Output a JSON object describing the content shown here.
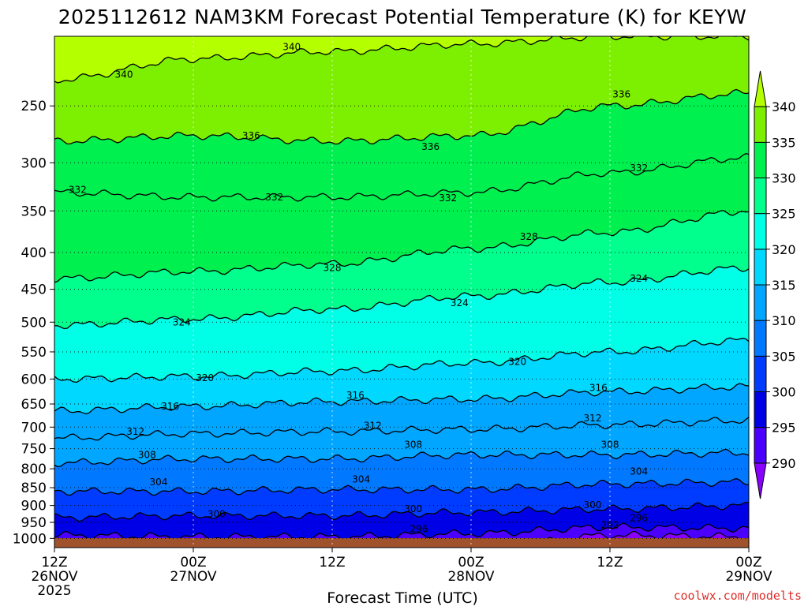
{
  "title": "2025112612 NAM3KM Forecast Potential Temperature (K) for KEYW",
  "credit": "coolwx.com/modelts",
  "colors": {
    "ground": "#a0522d",
    "bands": [
      {
        "from": 285,
        "to": 290,
        "color": "#8a00ff"
      },
      {
        "from": 290,
        "to": 295,
        "color": "#4b00ff"
      },
      {
        "from": 295,
        "to": 300,
        "color": "#0000e6"
      },
      {
        "from": 300,
        "to": 305,
        "color": "#003cff"
      },
      {
        "from": 305,
        "to": 310,
        "color": "#0078ff"
      },
      {
        "from": 310,
        "to": 315,
        "color": "#00a6ff"
      },
      {
        "from": 315,
        "to": 320,
        "color": "#00d8ff"
      },
      {
        "from": 320,
        "to": 325,
        "color": "#00ffe6"
      },
      {
        "from": 325,
        "to": 330,
        "color": "#00ff8c"
      },
      {
        "from": 330,
        "to": 335,
        "color": "#00f050"
      },
      {
        "from": 335,
        "to": 340,
        "color": "#7cf000"
      },
      {
        "from": 340,
        "to": 345,
        "color": "#b4ff00"
      }
    ]
  },
  "chart_data": {
    "type": "heatmap",
    "title": "2025112612 NAM3KM Forecast Potential Temperature (K) for KEYW",
    "xlabel": "Forecast Time (UTC)",
    "ylabel": "",
    "x_ticks": [
      {
        "hour": 0,
        "line1": "12Z",
        "line2": "26NOV",
        "line3": "2025"
      },
      {
        "hour": 12,
        "line1": "00Z",
        "line2": "27NOV",
        "line3": ""
      },
      {
        "hour": 24,
        "line1": "12Z",
        "line2": "",
        "line3": ""
      },
      {
        "hour": 36,
        "line1": "00Z",
        "line2": "28NOV",
        "line3": ""
      },
      {
        "hour": 48,
        "line1": "12Z",
        "line2": "",
        "line3": ""
      },
      {
        "hour": 60,
        "line1": "00Z",
        "line2": "29NOV",
        "line3": ""
      }
    ],
    "y_axis": {
      "scale": "log-pressure",
      "unit": "hPa",
      "top": 200,
      "bottom": 1030,
      "ticks": [
        250,
        300,
        350,
        400,
        450,
        500,
        550,
        600,
        650,
        700,
        750,
        800,
        850,
        900,
        950,
        1000
      ]
    },
    "colorbar": {
      "levels": [
        290,
        295,
        300,
        305,
        310,
        315,
        320,
        325,
        330,
        335,
        340
      ],
      "extend": "both"
    },
    "contour_interval": 4,
    "profile_hours": [
      0,
      12,
      24,
      36,
      48,
      60
    ],
    "profiles": [
      {
        "level": 292,
        "pressures": [
          1040,
          1040,
          1040,
          1040,
          990,
          995
        ]
      },
      {
        "level": 296,
        "pressures": [
          990,
          995,
          995,
          985,
          965,
          968
        ]
      },
      {
        "level": 300,
        "pressures": [
          935,
          930,
          930,
          920,
          910,
          900
        ]
      },
      {
        "level": 304,
        "pressures": [
          860,
          860,
          855,
          855,
          840,
          835
        ]
      },
      {
        "level": 308,
        "pressures": [
          785,
          775,
          775,
          765,
          765,
          760
        ]
      },
      {
        "level": 312,
        "pressures": [
          725,
          715,
          710,
          705,
          695,
          685
        ]
      },
      {
        "level": 316,
        "pressures": [
          665,
          655,
          645,
          640,
          625,
          615
        ]
      },
      {
        "level": 320,
        "pressures": [
          600,
          595,
          585,
          570,
          550,
          530
        ]
      },
      {
        "level": 324,
        "pressures": [
          505,
          495,
          480,
          460,
          440,
          420
        ]
      },
      {
        "level": 328,
        "pressures": [
          435,
          425,
          415,
          395,
          375,
          350
        ]
      },
      {
        "level": 332,
        "pressures": [
          330,
          335,
          335,
          330,
          310,
          295
        ]
      },
      {
        "level": 336,
        "pressures": [
          280,
          275,
          280,
          275,
          250,
          240
        ]
      },
      {
        "level": 340,
        "pressures": [
          230,
          215,
          210,
          205,
          200,
          200
        ]
      }
    ],
    "contour_labels": [
      {
        "text": "340",
        "hour": 20.5,
        "p": 207
      },
      {
        "text": "340",
        "hour": 6.0,
        "p": 226
      },
      {
        "text": "336",
        "hour": 49.0,
        "p": 241
      },
      {
        "text": "336",
        "hour": 17.0,
        "p": 275
      },
      {
        "text": "336",
        "hour": 32.5,
        "p": 285
      },
      {
        "text": "332",
        "hour": 2.0,
        "p": 327
      },
      {
        "text": "332",
        "hour": 19.0,
        "p": 335
      },
      {
        "text": "332",
        "hour": 34.0,
        "p": 336
      },
      {
        "text": "332",
        "hour": 50.5,
        "p": 305
      },
      {
        "text": "328",
        "hour": 41.0,
        "p": 380
      },
      {
        "text": "328",
        "hour": 24.0,
        "p": 420
      },
      {
        "text": "324",
        "hour": 11.0,
        "p": 500
      },
      {
        "text": "324",
        "hour": 35.0,
        "p": 470
      },
      {
        "text": "324",
        "hour": 50.5,
        "p": 435
      },
      {
        "text": "320",
        "hour": 13.0,
        "p": 598
      },
      {
        "text": "320",
        "hour": 40.0,
        "p": 568
      },
      {
        "text": "316",
        "hour": 10.0,
        "p": 655
      },
      {
        "text": "316",
        "hour": 26.0,
        "p": 632
      },
      {
        "text": "316",
        "hour": 47.0,
        "p": 617
      },
      {
        "text": "312",
        "hour": 7.0,
        "p": 710
      },
      {
        "text": "312",
        "hour": 27.5,
        "p": 697
      },
      {
        "text": "312",
        "hour": 46.5,
        "p": 680
      },
      {
        "text": "308",
        "hour": 8.0,
        "p": 765
      },
      {
        "text": "308",
        "hour": 31.0,
        "p": 740
      },
      {
        "text": "308",
        "hour": 48.0,
        "p": 740
      },
      {
        "text": "304",
        "hour": 9.0,
        "p": 835
      },
      {
        "text": "304",
        "hour": 26.5,
        "p": 828
      },
      {
        "text": "304",
        "hour": 50.5,
        "p": 807
      },
      {
        "text": "300",
        "hour": 14.0,
        "p": 925
      },
      {
        "text": "300",
        "hour": 31.0,
        "p": 910
      },
      {
        "text": "300",
        "hour": 46.5,
        "p": 898
      },
      {
        "text": "296",
        "hour": 50.5,
        "p": 937
      },
      {
        "text": "292",
        "hour": 48.0,
        "p": 958
      },
      {
        "text": "296",
        "hour": 31.5,
        "p": 970
      }
    ]
  }
}
